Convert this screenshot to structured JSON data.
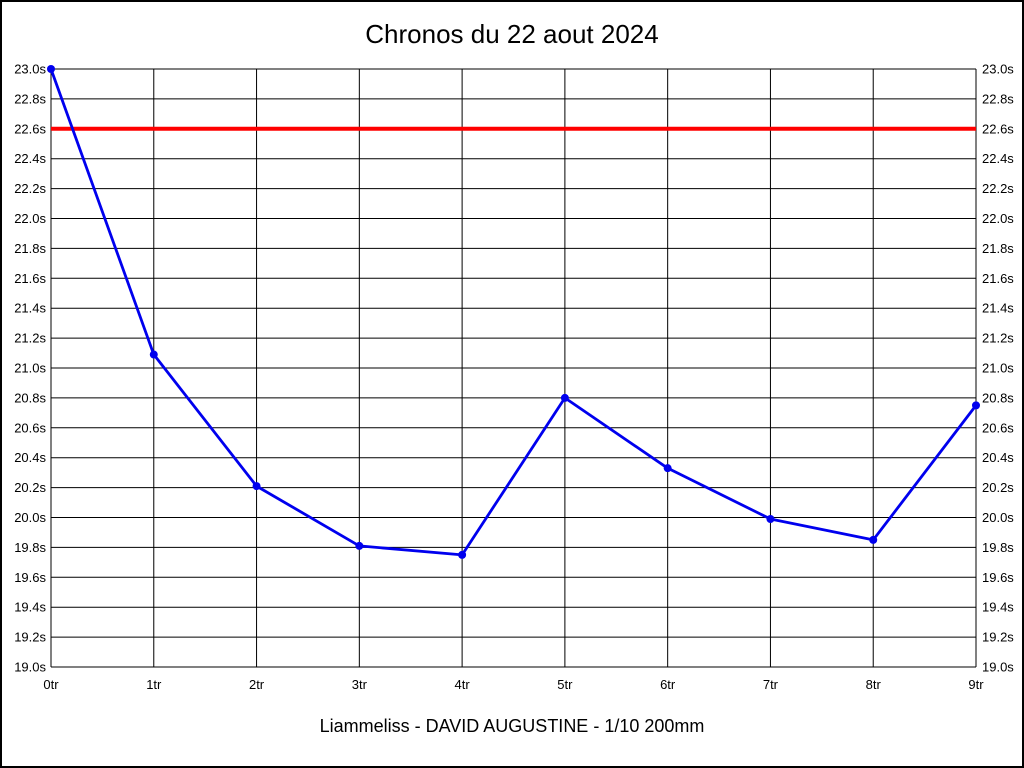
{
  "chart_data": {
    "type": "line",
    "title": "Chronos du 22 aout 2024",
    "caption": "Liammeliss - DAVID AUGUSTINE - 1/10 200mm",
    "xlabel": "",
    "ylabel": "",
    "categories": [
      "0tr",
      "1tr",
      "2tr",
      "3tr",
      "4tr",
      "5tr",
      "6tr",
      "7tr",
      "8tr",
      "9tr"
    ],
    "series": [
      {
        "name": "chrono-times",
        "color": "#0000ee",
        "values": [
          23.0,
          21.09,
          20.21,
          19.81,
          19.75,
          20.8,
          20.33,
          19.99,
          19.85,
          20.75
        ]
      }
    ],
    "reference_line": {
      "value": 22.6,
      "color": "#ff0000"
    },
    "ylim": [
      19.0,
      23.0
    ],
    "y_tick_step": 0.2,
    "y_tick_labels": [
      "23.0s",
      "22.8s",
      "22.6s",
      "22.4s",
      "22.2s",
      "22.0s",
      "21.8s",
      "21.6s",
      "21.4s",
      "21.2s",
      "21.0s",
      "20.8s",
      "20.6s",
      "20.4s",
      "20.2s",
      "20.0s",
      "19.8s",
      "19.6s",
      "19.4s",
      "19.2s",
      "19.0s"
    ],
    "grid": true,
    "grid_color": "#000000",
    "legend_position": "none",
    "background_color": "#ffffff"
  }
}
